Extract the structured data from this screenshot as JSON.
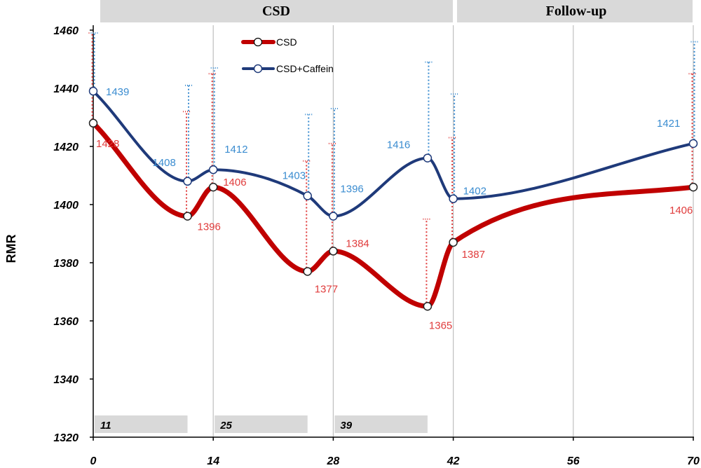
{
  "chart_data": {
    "type": "line",
    "title": "",
    "xlabel": "",
    "ylabel": "RMR",
    "xlim": [
      0,
      70
    ],
    "ylim": [
      1320,
      1460
    ],
    "x_ticks": [
      0,
      14,
      28,
      42,
      56,
      70
    ],
    "y_ticks": [
      1320,
      1340,
      1360,
      1380,
      1400,
      1420,
      1440,
      1460
    ],
    "phases": [
      {
        "label": "CSD",
        "start": 0,
        "end": 42
      },
      {
        "label": "Follow-up",
        "start": 42,
        "end": 70
      }
    ],
    "day_markers": [
      {
        "label": "11",
        "start": 0,
        "end": 11
      },
      {
        "label": "25",
        "start": 14,
        "end": 25
      },
      {
        "label": "39",
        "start": 28,
        "end": 39
      }
    ],
    "legend_position": "top-center",
    "series": [
      {
        "name": "CSD",
        "color": "#c00000",
        "label_color": "#e03c3c",
        "x": [
          0,
          11,
          14,
          25,
          28,
          39,
          42,
          70
        ],
        "values": [
          1428,
          1396,
          1406,
          1377,
          1384,
          1365,
          1387,
          1406
        ],
        "error_upper": [
          1459,
          1432,
          1445,
          1415,
          1421,
          1395,
          1423,
          1445
        ],
        "labels": [
          "1428",
          "1396",
          "1406",
          "1377",
          "1384",
          "1365",
          "1387",
          "1406"
        ]
      },
      {
        "name": "CSD+Caffein",
        "color": "#1f3a7a",
        "label_color": "#3a8cd0",
        "x": [
          0,
          11,
          14,
          25,
          28,
          39,
          42,
          70
        ],
        "values": [
          1439,
          1408,
          1412,
          1403,
          1396,
          1416,
          1402,
          1421
        ],
        "error_upper": [
          1459,
          1441,
          1447,
          1431,
          1433,
          1449,
          1438,
          1456
        ],
        "labels": [
          "1439",
          "1408",
          "1412",
          "1403",
          "1396",
          "1416",
          "1402",
          "1421"
        ]
      }
    ]
  }
}
